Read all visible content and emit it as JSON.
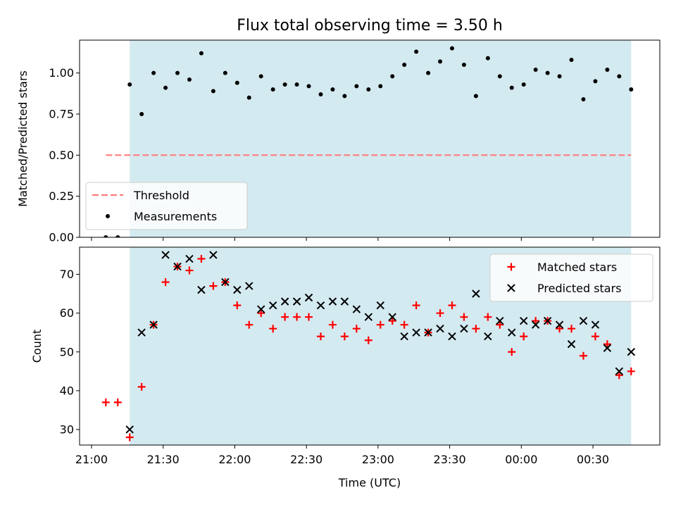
{
  "title": "Flux total observing time = 3.50 h",
  "colors": {
    "shade": "#d4eaf1",
    "threshold": "#ff7b7b",
    "matched": "#ff0000",
    "predicted": "#000000",
    "measurement": "#000000"
  },
  "chart_data": [
    {
      "type": "scatter",
      "panel": "top",
      "ylabel": "Matched/Predicted stars",
      "ylim": [
        0,
        1.2
      ],
      "yticks": [
        "0.00",
        "0.25",
        "0.50",
        "0.75",
        "1.00"
      ],
      "shaded_x_range": [
        "21:16",
        "24:46"
      ],
      "legend": {
        "position": "lower-left",
        "entries": [
          "Threshold",
          "Measurements"
        ]
      },
      "series": [
        {
          "name": "Threshold",
          "kind": "dashed-line",
          "x": [
            "21:06",
            "24:46"
          ],
          "values": [
            0.5,
            0.5
          ]
        },
        {
          "name": "Measurements",
          "kind": "dots",
          "x": [
            "21:06",
            "21:11",
            "21:16",
            "21:21",
            "21:26",
            "21:31",
            "21:36",
            "21:41",
            "21:46",
            "21:51",
            "21:56",
            "22:01",
            "22:06",
            "22:11",
            "22:16",
            "22:21",
            "22:26",
            "22:31",
            "22:36",
            "22:41",
            "22:46",
            "22:51",
            "22:56",
            "23:01",
            "23:06",
            "23:11",
            "23:16",
            "23:21",
            "23:26",
            "23:31",
            "23:36",
            "23:41",
            "23:46",
            "23:51",
            "23:56",
            "24:01",
            "24:06",
            "24:11",
            "24:16",
            "24:21",
            "24:26",
            "24:31",
            "24:36",
            "24:41",
            "24:46"
          ],
          "values": [
            0.0,
            0.0,
            0.93,
            0.75,
            1.0,
            0.91,
            1.0,
            0.96,
            1.12,
            0.89,
            1.0,
            0.94,
            0.85,
            0.98,
            0.9,
            0.93,
            0.93,
            0.92,
            0.87,
            0.9,
            0.86,
            0.92,
            0.9,
            0.92,
            0.98,
            1.05,
            1.13,
            1.0,
            1.07,
            1.15,
            1.05,
            0.86,
            1.09,
            0.98,
            0.91,
            0.93,
            1.02,
            1.0,
            0.98,
            1.08,
            0.84,
            0.95,
            1.02,
            0.98,
            0.9
          ]
        }
      ]
    },
    {
      "type": "scatter",
      "panel": "bottom",
      "ylabel": "Count",
      "xlabel": "Time (UTC)",
      "ylim": [
        26,
        77
      ],
      "yticks": [
        "30",
        "40",
        "50",
        "60",
        "70"
      ],
      "xticks": [
        "21:00",
        "21:30",
        "22:00",
        "22:30",
        "23:00",
        "23:30",
        "00:00",
        "00:30"
      ],
      "shaded_x_range": [
        "21:16",
        "24:46"
      ],
      "legend": {
        "position": "top-right",
        "entries": [
          "Matched stars",
          "Predicted stars"
        ]
      },
      "series": [
        {
          "name": "Matched stars",
          "kind": "plus",
          "x": [
            "21:06",
            "21:11",
            "21:16",
            "21:21",
            "21:26",
            "21:31",
            "21:36",
            "21:41",
            "21:46",
            "21:51",
            "21:56",
            "22:01",
            "22:06",
            "22:11",
            "22:16",
            "22:21",
            "22:26",
            "22:31",
            "22:36",
            "22:41",
            "22:46",
            "22:51",
            "22:56",
            "23:01",
            "23:06",
            "23:11",
            "23:16",
            "23:21",
            "23:26",
            "23:31",
            "23:36",
            "23:41",
            "23:46",
            "23:51",
            "23:56",
            "24:01",
            "24:06",
            "24:11",
            "24:16",
            "24:21",
            "24:26",
            "24:31",
            "24:36",
            "24:41",
            "24:46"
          ],
          "values": [
            37,
            37,
            28,
            41,
            57,
            68,
            72,
            71,
            74,
            67,
            68,
            62,
            57,
            60,
            56,
            59,
            59,
            59,
            54,
            57,
            54,
            56,
            53,
            57,
            58,
            57,
            62,
            55,
            60,
            62,
            59,
            56,
            59,
            57,
            50,
            54,
            58,
            58,
            56,
            56,
            49,
            54,
            52,
            44,
            45
          ]
        },
        {
          "name": "Predicted stars",
          "kind": "x",
          "x": [
            "21:16",
            "21:21",
            "21:26",
            "21:31",
            "21:36",
            "21:41",
            "21:46",
            "21:51",
            "21:56",
            "22:01",
            "22:06",
            "22:11",
            "22:16",
            "22:21",
            "22:26",
            "22:31",
            "22:36",
            "22:41",
            "22:46",
            "22:51",
            "22:56",
            "23:01",
            "23:06",
            "23:11",
            "23:16",
            "23:21",
            "23:26",
            "23:31",
            "23:36",
            "23:41",
            "23:46",
            "23:51",
            "23:56",
            "24:01",
            "24:06",
            "24:11",
            "24:16",
            "24:21",
            "24:26",
            "24:31",
            "24:36",
            "24:41",
            "24:46"
          ],
          "values": [
            30,
            55,
            57,
            75,
            72,
            74,
            66,
            75,
            68,
            66,
            67,
            61,
            62,
            63,
            63,
            64,
            62,
            63,
            63,
            61,
            59,
            62,
            59,
            54,
            55,
            55,
            56,
            54,
            56,
            65,
            54,
            58,
            55,
            58,
            57,
            58,
            57,
            52,
            58,
            57,
            51,
            45,
            50
          ]
        }
      ]
    }
  ]
}
